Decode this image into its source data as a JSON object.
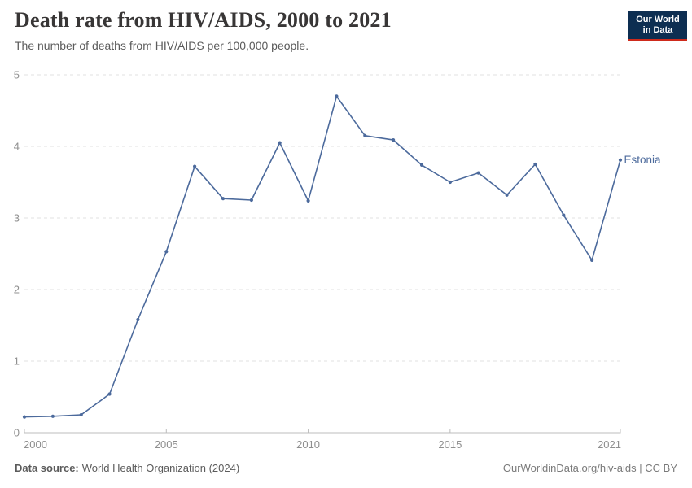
{
  "header": {
    "title": "Death rate from HIV/AIDS, 2000 to 2021",
    "subtitle": "The number of deaths from HIV/AIDS per 100,000 people."
  },
  "logo": {
    "line1": "Our World",
    "line2": "in Data"
  },
  "chart_data": {
    "type": "line",
    "title": "Death rate from HIV/AIDS, 2000 to 2021",
    "subtitle": "The number of deaths from HIV/AIDS per 100,000 people.",
    "xlabel": "",
    "ylabel": "",
    "x": [
      2000,
      2001,
      2002,
      2003,
      2004,
      2005,
      2006,
      2007,
      2008,
      2009,
      2010,
      2011,
      2012,
      2013,
      2014,
      2015,
      2016,
      2017,
      2018,
      2019,
      2020,
      2021
    ],
    "series": [
      {
        "name": "Estonia",
        "color": "#4C6A9C",
        "values": [
          0.22,
          0.23,
          0.25,
          0.54,
          1.58,
          2.53,
          3.72,
          3.27,
          3.25,
          4.05,
          3.24,
          4.7,
          4.15,
          4.09,
          3.74,
          3.5,
          3.63,
          3.32,
          3.75,
          3.04,
          2.41,
          3.81
        ]
      }
    ],
    "ylim": [
      0,
      5
    ],
    "yticks": [
      0,
      1,
      2,
      3,
      4,
      5
    ],
    "xticks": [
      2000,
      2005,
      2010,
      2015,
      2021
    ],
    "grid": "horizontal-dashed",
    "legend_position": "line-end-label"
  },
  "colors": {
    "line": "#4C6A9C",
    "grid": "#E2E2E2",
    "axis": "#BCBCBC",
    "tick_label": "#8F8F8F",
    "title": "#383636",
    "subtitle": "#5B5B5B",
    "footer": "#5B5B5B",
    "credit": "#7A7A7A",
    "logo_bg": "#0D2E51",
    "logo_red": "#CE2A1B"
  },
  "footer": {
    "data_source_label": "Data source:",
    "data_source_text": "World Health Organization (2024)",
    "credit": "OurWorldinData.org/hiv-aids | CC BY"
  }
}
